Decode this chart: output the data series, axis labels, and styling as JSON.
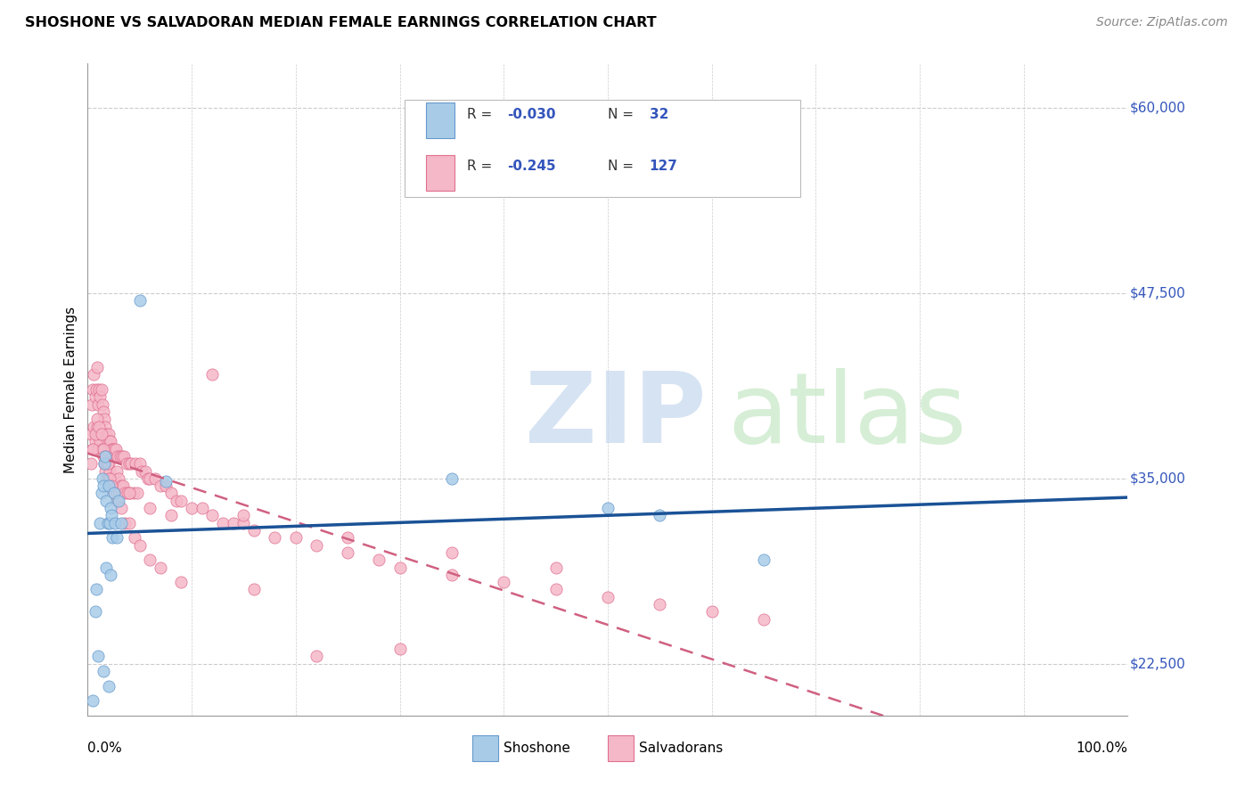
{
  "title": "SHOSHONE VS SALVADORAN MEDIAN FEMALE EARNINGS CORRELATION CHART",
  "source": "Source: ZipAtlas.com",
  "ylabel": "Median Female Earnings",
  "yticks": [
    22500,
    35000,
    47500,
    60000
  ],
  "ytick_labels": [
    "$22,500",
    "$35,000",
    "$47,500",
    "$60,000"
  ],
  "xlim": [
    0.0,
    1.0
  ],
  "ylim": [
    19000,
    63000
  ],
  "shoshone_color": "#a8cce8",
  "salvadoran_color": "#f5b8c8",
  "shoshone_edge_color": "#6699cc",
  "salvadoran_edge_color": "#e07090",
  "shoshone_line_color": "#1a5296",
  "salvadoran_line_color": "#d06080",
  "background_color": "#ffffff",
  "grid_color": "#cccccc",
  "tick_label_color": "#3355bb",
  "shoshone_x": [
    0.005,
    0.007,
    0.008,
    0.01,
    0.012,
    0.013,
    0.014,
    0.015,
    0.016,
    0.017,
    0.018,
    0.019,
    0.02,
    0.021,
    0.022,
    0.023,
    0.024,
    0.025,
    0.026,
    0.028,
    0.03,
    0.032,
    0.05,
    0.075,
    0.35,
    0.5,
    0.55,
    0.65,
    0.02,
    0.015,
    0.018,
    0.022
  ],
  "shoshone_y": [
    20000,
    26000,
    27500,
    23000,
    32000,
    34000,
    35000,
    34500,
    36000,
    36500,
    33500,
    32000,
    34500,
    32000,
    33000,
    32500,
    31000,
    34000,
    32000,
    31000,
    33500,
    32000,
    47000,
    34800,
    35000,
    33000,
    32500,
    29500,
    21000,
    22000,
    29000,
    28500
  ],
  "salvadoran_x": [
    0.003,
    0.004,
    0.005,
    0.005,
    0.006,
    0.006,
    0.007,
    0.007,
    0.008,
    0.008,
    0.009,
    0.009,
    0.01,
    0.01,
    0.011,
    0.011,
    0.012,
    0.012,
    0.013,
    0.013,
    0.014,
    0.014,
    0.015,
    0.015,
    0.016,
    0.016,
    0.017,
    0.017,
    0.018,
    0.018,
    0.019,
    0.019,
    0.02,
    0.02,
    0.021,
    0.021,
    0.022,
    0.022,
    0.023,
    0.023,
    0.024,
    0.024,
    0.025,
    0.025,
    0.026,
    0.026,
    0.027,
    0.028,
    0.029,
    0.03,
    0.031,
    0.032,
    0.033,
    0.034,
    0.035,
    0.036,
    0.037,
    0.038,
    0.04,
    0.041,
    0.042,
    0.044,
    0.046,
    0.048,
    0.05,
    0.052,
    0.055,
    0.058,
    0.06,
    0.065,
    0.07,
    0.075,
    0.08,
    0.085,
    0.09,
    0.1,
    0.11,
    0.12,
    0.13,
    0.14,
    0.15,
    0.16,
    0.18,
    0.2,
    0.22,
    0.25,
    0.28,
    0.3,
    0.35,
    0.4,
    0.45,
    0.5,
    0.55,
    0.6,
    0.65,
    0.003,
    0.005,
    0.007,
    0.009,
    0.011,
    0.013,
    0.015,
    0.017,
    0.019,
    0.021,
    0.023,
    0.025,
    0.028,
    0.032,
    0.036,
    0.04,
    0.045,
    0.05,
    0.06,
    0.07,
    0.09,
    0.12,
    0.16,
    0.22,
    0.3,
    0.04,
    0.06,
    0.08,
    0.15,
    0.25,
    0.35,
    0.45
  ],
  "salvadoran_y": [
    38000,
    40000,
    41000,
    37000,
    42000,
    38500,
    40500,
    37500,
    41000,
    38000,
    42500,
    38500,
    40000,
    37000,
    41000,
    38000,
    40500,
    37500,
    41000,
    38000,
    40000,
    37000,
    39500,
    36500,
    39000,
    36000,
    38500,
    35500,
    38000,
    36000,
    37500,
    35000,
    38000,
    36000,
    37500,
    35500,
    37500,
    35000,
    37000,
    34500,
    37000,
    35000,
    37000,
    35000,
    36500,
    34500,
    37000,
    35500,
    36500,
    35000,
    36500,
    34500,
    36500,
    34500,
    36500,
    34000,
    36000,
    34000,
    36000,
    34000,
    36000,
    34000,
    36000,
    34000,
    36000,
    35500,
    35500,
    35000,
    35000,
    35000,
    34500,
    34500,
    34000,
    33500,
    33500,
    33000,
    33000,
    32500,
    32000,
    32000,
    32000,
    31500,
    31000,
    31000,
    30500,
    30000,
    29500,
    29000,
    28500,
    28000,
    27500,
    27000,
    26500,
    26000,
    25500,
    36000,
    37000,
    38000,
    39000,
    38500,
    38000,
    37000,
    36500,
    36000,
    35000,
    34500,
    34000,
    33500,
    33000,
    32000,
    32000,
    31000,
    30500,
    29500,
    29000,
    28000,
    42000,
    27500,
    23000,
    23500,
    34000,
    33000,
    32500,
    32500,
    31000,
    30000,
    29000
  ]
}
